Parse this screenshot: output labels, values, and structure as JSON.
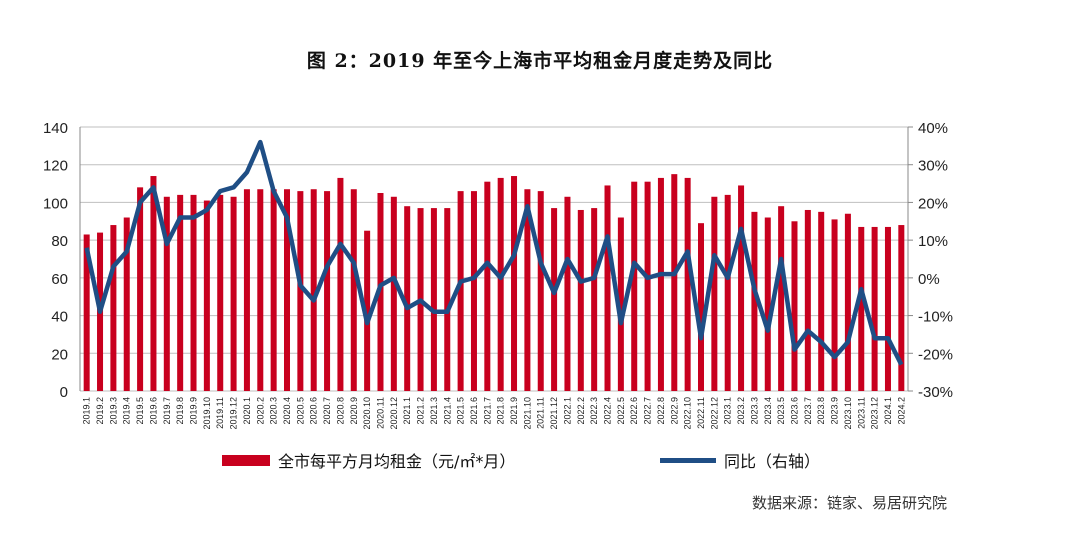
{
  "title": "图 2：2019 年至今上海市平均租金月度走势及同比",
  "source": "数据来源：链家、易居研究院",
  "colors": {
    "bar": "#c8001e",
    "line": "#1f4e85",
    "grid": "#bfbfbf"
  },
  "chart_data": {
    "type": "bar+line",
    "title": "图 2：2019 年至今上海市平均租金月度走势及同比",
    "categories": [
      "2019.1",
      "2019.2",
      "2019.3",
      "2019.4",
      "2019.5",
      "2019.6",
      "2019.7",
      "2019.8",
      "2019.9",
      "2019.10",
      "2019.11",
      "2019.12",
      "2020.1",
      "2020.2",
      "2020.3",
      "2020.4",
      "2020.5",
      "2020.6",
      "2020.7",
      "2020.8",
      "2020.9",
      "2020.10",
      "2020.11",
      "2020.12",
      "2021.1",
      "2021.2",
      "2021.3",
      "2021.4",
      "2021.5",
      "2021.6",
      "2021.7",
      "2021.8",
      "2021.9",
      "2021.10",
      "2021.11",
      "2021.12",
      "2022.1",
      "2022.2",
      "2022.3",
      "2022.4",
      "2022.5",
      "2022.6",
      "2022.7",
      "2022.8",
      "2022.9",
      "2022.10",
      "2022.11",
      "2022.12",
      "2023.1",
      "2023.2",
      "2023.3",
      "2023.4",
      "2023.5",
      "2023.6",
      "2023.7",
      "2023.8",
      "2023.9",
      "2023.10",
      "2023.11",
      "2023.12",
      "2024.1",
      "2024.2"
    ],
    "series": [
      {
        "name": "全市每平方月均租金（元/㎡*月）",
        "type": "bar",
        "axis": "left",
        "values": [
          83,
          84,
          88,
          92,
          108,
          114,
          103,
          104,
          104,
          101,
          104,
          103,
          107,
          107,
          107,
          107,
          106,
          107,
          106,
          113,
          107,
          85,
          105,
          103,
          98,
          97,
          97,
          97,
          106,
          106,
          111,
          113,
          114,
          107,
          106,
          97,
          103,
          96,
          97,
          109,
          92,
          111,
          111,
          113,
          115,
          113,
          89,
          103,
          104,
          109,
          95,
          92,
          98,
          90,
          96,
          95,
          91,
          94,
          87,
          87,
          87,
          88
        ]
      },
      {
        "name": "同比（右轴）",
        "type": "line",
        "axis": "right",
        "unit": "%",
        "values": [
          8,
          -9,
          3,
          7,
          20,
          24,
          9,
          16,
          16,
          18,
          23,
          24,
          28,
          36,
          23,
          16,
          -2,
          -6,
          3,
          9,
          4,
          -12,
          -2,
          0,
          -8,
          -6,
          -9,
          -9,
          -1,
          0,
          4,
          0,
          6,
          19,
          4,
          -4,
          5,
          -1,
          0,
          11,
          -12,
          4,
          0,
          1,
          1,
          7,
          -16,
          6,
          0,
          13,
          -3,
          -14,
          5,
          -19,
          -14,
          -17,
          -21,
          -17,
          -3,
          -16,
          -16,
          -23
        ]
      }
    ],
    "left_axis": {
      "ylim": [
        0,
        140
      ],
      "ticks": [
        "0",
        "20",
        "40",
        "60",
        "80",
        "100",
        "120",
        "140"
      ]
    },
    "right_axis": {
      "ylim": [
        -30,
        40
      ],
      "ticks": [
        "-30%",
        "-20%",
        "-10%",
        "0%",
        "10%",
        "20%",
        "30%",
        "40%"
      ]
    },
    "grid": true,
    "legend_position": "bottom"
  }
}
